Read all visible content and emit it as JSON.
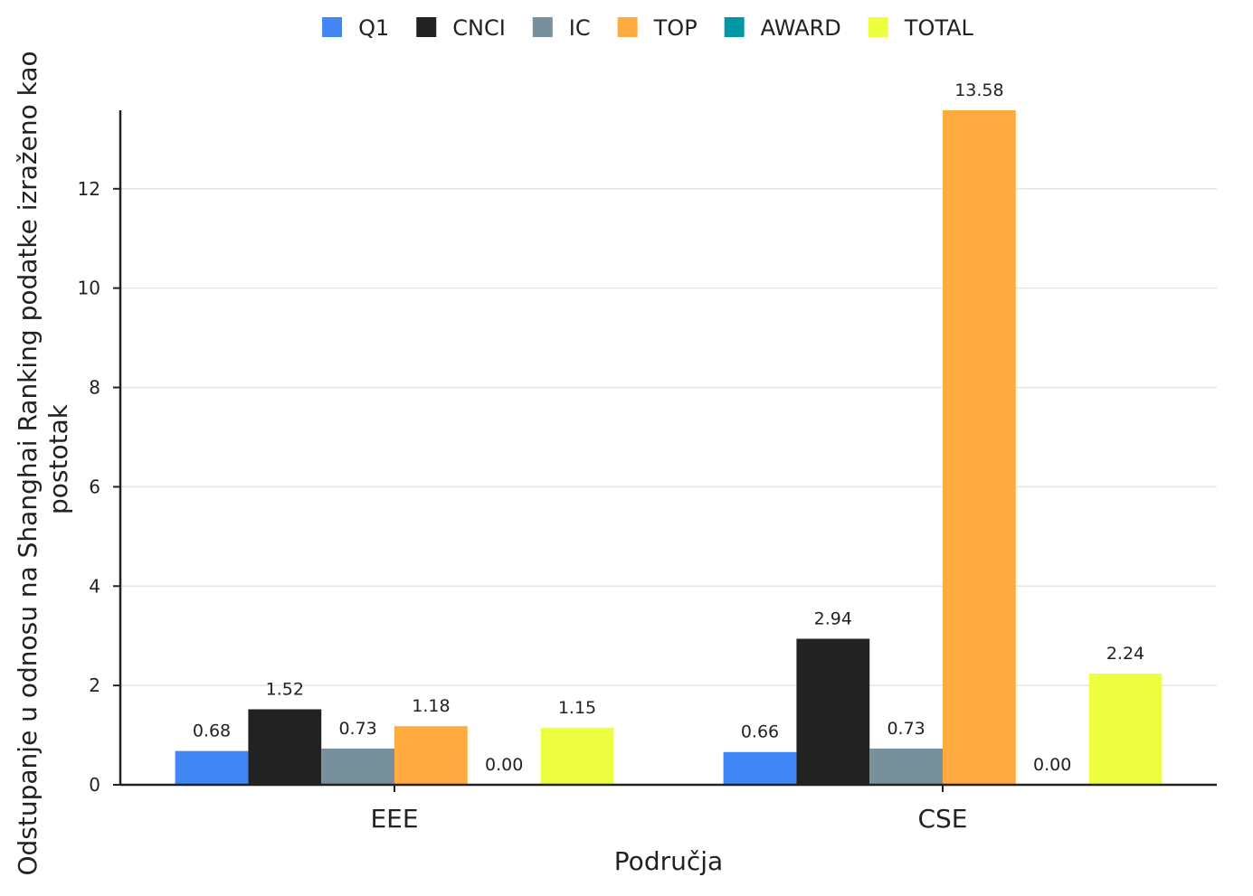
{
  "chart_data": {
    "type": "bar",
    "categories": [
      "EEE",
      "CSE"
    ],
    "series": [
      {
        "name": "Q1",
        "color": "#4285f4",
        "values": [
          0.68,
          0.66
        ],
        "labels": [
          "0.68",
          "0.66"
        ]
      },
      {
        "name": "CNCI",
        "color": "#222222",
        "values": [
          1.52,
          2.94
        ],
        "labels": [
          "1.52",
          "2.94"
        ]
      },
      {
        "name": "IC",
        "color": "#78909c",
        "values": [
          0.73,
          0.73
        ],
        "labels": [
          "0.73",
          "0.73"
        ]
      },
      {
        "name": "TOP",
        "color": "#ffab40",
        "values": [
          1.18,
          13.58
        ],
        "labels": [
          "1.18",
          "13.58"
        ]
      },
      {
        "name": "AWARD",
        "color": "#0097a7",
        "values": [
          0.0,
          0.0
        ],
        "labels": [
          "0.00",
          "0.00"
        ]
      },
      {
        "name": "TOTAL",
        "color": "#eeff41",
        "values": [
          1.15,
          2.24
        ],
        "labels": [
          "1.15",
          "2.24"
        ]
      }
    ],
    "xlabel": "Područja",
    "ylabel_lines": [
      "Odstupanje u odnosu na Shanghai Ranking podatke izraženo kao",
      "postotak"
    ],
    "ylim": [
      0,
      13.58
    ],
    "yticks": [
      0,
      2,
      4,
      6,
      8,
      10,
      12
    ],
    "grid": true,
    "legend_position": "top-center"
  }
}
